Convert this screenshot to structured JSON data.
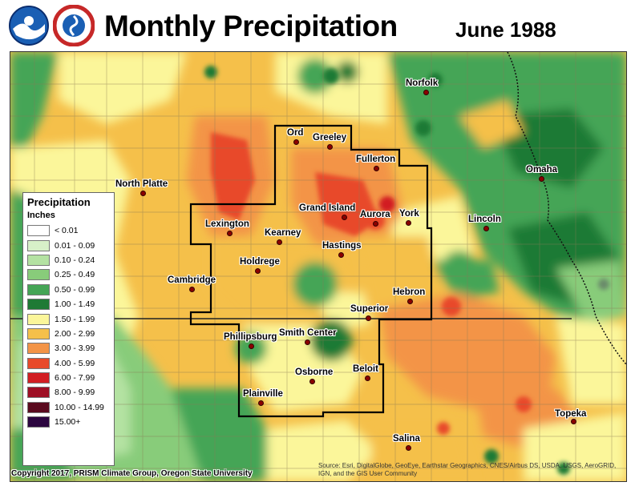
{
  "header": {
    "title": "Monthly Precipitation",
    "date": "June 1988"
  },
  "logos": [
    "noaa-logo",
    "national-weather-service-logo"
  ],
  "legend": {
    "title": "Precipitation",
    "units": "Inches",
    "items": [
      {
        "label": "< 0.01",
        "color": "#ffffff"
      },
      {
        "label": "0.01 - 0.09",
        "color": "#d7f0c8"
      },
      {
        "label": "0.10 - 0.24",
        "color": "#b4e2a2"
      },
      {
        "label": "0.25 - 0.49",
        "color": "#88cc7a"
      },
      {
        "label": "0.50 - 0.99",
        "color": "#45a556"
      },
      {
        "label": "1.00 - 1.49",
        "color": "#1f7a35"
      },
      {
        "label": "1.50 - 1.99",
        "color": "#fbf69a"
      },
      {
        "label": "2.00 - 2.99",
        "color": "#f5c04a"
      },
      {
        "label": "3.00 - 3.99",
        "color": "#f39447"
      },
      {
        "label": "4.00 - 5.99",
        "color": "#e84a2a"
      },
      {
        "label": "6.00 - 7.99",
        "color": "#d21e22"
      },
      {
        "label": "8.00 - 9.99",
        "color": "#9e0f24"
      },
      {
        "label": "10.00 - 14.99",
        "color": "#5a0a1e"
      },
      {
        "label": "15.00+",
        "color": "#2c0640"
      }
    ]
  },
  "cities": [
    {
      "name": "Ord"
    },
    {
      "name": "Greeley"
    },
    {
      "name": "Fullerton"
    },
    {
      "name": "Norfolk"
    },
    {
      "name": "North Platte"
    },
    {
      "name": "Omaha"
    },
    {
      "name": "Grand Island"
    },
    {
      "name": "Aurora"
    },
    {
      "name": "York"
    },
    {
      "name": "Lincoln"
    },
    {
      "name": "Lexington"
    },
    {
      "name": "Kearney"
    },
    {
      "name": "Hastings"
    },
    {
      "name": "Holdrege"
    },
    {
      "name": "Cambridge"
    },
    {
      "name": "Hebron"
    },
    {
      "name": "Superior"
    },
    {
      "name": "Phillipsburg"
    },
    {
      "name": "Smith Center"
    },
    {
      "name": "Osborne"
    },
    {
      "name": "Beloit"
    },
    {
      "name": "Plainville"
    },
    {
      "name": "Topeka"
    },
    {
      "name": "Salina"
    }
  ],
  "copyright": "Copyright 2017, PRISM Climate Group, Oregon State University",
  "source": "Source: Esri, DigitalGlobe, GeoEye, Earthstar Geographics, CNES/Airbus DS, USDA, USGS, AeroGRID, IGN, and the GIS User Community",
  "colors": {
    "base": "#f5c04a",
    "dry_green": "#1f7a35",
    "wet_orange": "#f39447"
  }
}
